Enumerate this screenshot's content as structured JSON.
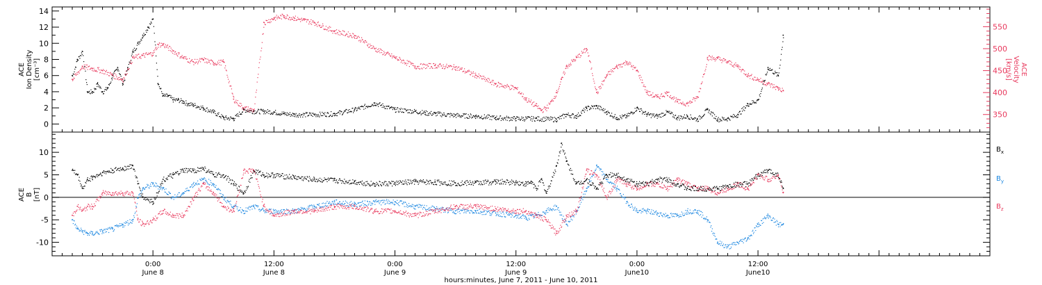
{
  "chart_data": [
    {
      "type": "scatter",
      "panel": "ace-density-velocity",
      "ylabel_lines": [
        "ACE",
        "Ion Density",
        "[cm⁻³]"
      ],
      "y2label_lines": [
        "ACE",
        "Velocity",
        "[km/s]"
      ],
      "ylim": [
        -1,
        14.5
      ],
      "yticks": [
        0,
        2,
        4,
        6,
        8,
        10,
        12,
        14
      ],
      "y2lim": [
        310,
        595
      ],
      "y2ticks": [
        350,
        400,
        450,
        500,
        550
      ],
      "series": [
        {
          "color": "#000000",
          "axis": "left",
          "x": [
            -8,
            -7.5,
            -7,
            -6.5,
            -6,
            -5.5,
            -5,
            -4.5,
            -4,
            -3.5,
            -3,
            -2.5,
            -2,
            -1.5,
            -1,
            -0.5,
            0,
            0.5,
            1,
            1.5,
            2,
            2.5,
            3,
            3.5,
            4,
            5,
            6,
            7,
            8,
            9,
            10,
            11,
            12,
            13,
            14,
            16,
            18,
            20,
            22,
            24,
            26,
            27,
            28,
            30,
            32,
            34,
            36,
            38,
            40,
            41,
            42,
            43,
            44,
            45,
            46,
            47,
            48,
            49,
            50,
            51,
            52,
            53,
            54,
            55,
            56,
            57,
            58,
            59,
            60,
            61,
            62,
            62.5
          ],
          "y": [
            6,
            8,
            9,
            4,
            4,
            5,
            4,
            4.5,
            6,
            7,
            5,
            7,
            9,
            10,
            11,
            12,
            13,
            5,
            3.5,
            3.5,
            3,
            3,
            2.8,
            2.5,
            2.4,
            2,
            1.5,
            0.8,
            0.7,
            1.8,
            1.6,
            1.6,
            1.5,
            1.3,
            1.2,
            1.2,
            1.3,
            1.8,
            2.6,
            1.8,
            1.6,
            1.4,
            1.3,
            1.1,
            1,
            0.8,
            0.7,
            0.7,
            0.6,
            1.2,
            1,
            2,
            2.2,
            1.5,
            0.8,
            1,
            2,
            1.2,
            1,
            1.5,
            0.8,
            1,
            0.6,
            1.8,
            0.6,
            0.7,
            1.2,
            2.5,
            3,
            7,
            6,
            11
          ]
        },
        {
          "color": "#e8385c",
          "axis": "right",
          "x": [
            -8,
            -7,
            -6,
            -5,
            -4,
            -3,
            -2,
            -1,
            0,
            0.5,
            1,
            2,
            3,
            4,
            5,
            6,
            7,
            8,
            9,
            10,
            11,
            12,
            13,
            14,
            15,
            16,
            18,
            20,
            22,
            24,
            26,
            28,
            30,
            32,
            34,
            36,
            37,
            38,
            38.5,
            39,
            39.5,
            40,
            40.5,
            41,
            42,
            43,
            44,
            45,
            46,
            47,
            48,
            49,
            50,
            51,
            52,
            53,
            54,
            55,
            56,
            57,
            58,
            59,
            60,
            61,
            62,
            62.5
          ],
          "y": [
            430,
            460,
            455,
            450,
            440,
            430,
            480,
            485,
            490,
            510,
            510,
            495,
            480,
            470,
            475,
            468,
            470,
            385,
            365,
            360,
            560,
            570,
            575,
            570,
            565,
            560,
            540,
            530,
            500,
            480,
            460,
            462,
            458,
            440,
            420,
            410,
            385,
            370,
            360,
            365,
            380,
            400,
            430,
            460,
            480,
            500,
            400,
            440,
            460,
            470,
            450,
            400,
            390,
            400,
            380,
            375,
            390,
            480,
            478,
            470,
            460,
            440,
            430,
            420,
            410,
            405
          ]
        }
      ],
      "baseline": 1.5
    },
    {
      "type": "scatter",
      "panel": "ace-magnetic-field",
      "ylabel_lines": [
        "ACE",
        "B",
        "[nT]"
      ],
      "ylim": [
        -13,
        14.5
      ],
      "yticks": [
        -10,
        -5,
        0,
        5,
        10
      ],
      "zero_line": true,
      "legend_position": "right",
      "series": [
        {
          "name_main": "B",
          "name_sub": "x",
          "color": "#000000",
          "x": [
            -8,
            -7.5,
            -7,
            -6.5,
            -6,
            -5,
            -4,
            -3,
            -2,
            -1.5,
            -1,
            0,
            1,
            2,
            3,
            4,
            5,
            6,
            7,
            8,
            9,
            10,
            11,
            12,
            14,
            16,
            18,
            20,
            22,
            24,
            26,
            28,
            30,
            32,
            34,
            36,
            37,
            37.5,
            38,
            38.5,
            39,
            40,
            40.5,
            41,
            42,
            43,
            44,
            45,
            46,
            47,
            48,
            49,
            50,
            51,
            52,
            53,
            54,
            55,
            56,
            57,
            58,
            59,
            60,
            61,
            62,
            62.5
          ],
          "y": [
            6,
            5,
            2,
            4,
            4.5,
            5.5,
            6,
            6.5,
            7,
            3,
            0,
            -1,
            4,
            5,
            6,
            6,
            6.5,
            5,
            5,
            3,
            1,
            6,
            5,
            5,
            4.5,
            4,
            3.8,
            3.5,
            3,
            3.2,
            3.5,
            3.4,
            3.2,
            3.3,
            3.5,
            3.4,
            3,
            3.5,
            2,
            4,
            1,
            7,
            12,
            8,
            3,
            4,
            2,
            5,
            5,
            4,
            3,
            3,
            4,
            4,
            3,
            2,
            2,
            2,
            2,
            2.5,
            3,
            3,
            5,
            6,
            5,
            2
          ]
        },
        {
          "name_main": "B",
          "name_sub": "y",
          "color": "#1a86e0",
          "x": [
            -8,
            -7.5,
            -7,
            -6.5,
            -6,
            -5,
            -4,
            -3,
            -2,
            -1.5,
            -1,
            0,
            1,
            2,
            3,
            4,
            5,
            6,
            7,
            8,
            9,
            10,
            11,
            12,
            14,
            16,
            18,
            20,
            22,
            24,
            26,
            28,
            30,
            32,
            34,
            36,
            37,
            38,
            39,
            40,
            41,
            42,
            43,
            44,
            45,
            46,
            47,
            48,
            49,
            50,
            51,
            52,
            53,
            54,
            55,
            56,
            57,
            58,
            59,
            60,
            61,
            62,
            62.5
          ],
          "y": [
            -5,
            -7,
            -7.5,
            -8,
            -8,
            -7.5,
            -7,
            -6,
            -5,
            0,
            2,
            3,
            2,
            0,
            1,
            3,
            4,
            3,
            0,
            -2,
            -3,
            -2,
            -3,
            -3,
            -3,
            -2,
            -1,
            -1.5,
            -1,
            -1,
            -2,
            -2.5,
            -3,
            -3,
            -3.5,
            -4,
            -4.5,
            -4,
            -3,
            -2,
            -6,
            -3,
            2,
            7,
            4,
            2,
            -1,
            -3,
            -3,
            -3.5,
            -4,
            -4,
            -3,
            -3,
            -5,
            -10,
            -11,
            -10,
            -9,
            -6,
            -4,
            -6,
            -6
          ]
        },
        {
          "name_main": "B",
          "name_sub": "z",
          "color": "#e8385c",
          "x": [
            -8,
            -7.5,
            -7,
            -6.5,
            -6,
            -5,
            -4,
            -3,
            -2,
            -1.5,
            -1,
            0,
            1,
            2,
            3,
            4,
            5,
            6,
            7,
            8,
            9,
            10,
            11,
            12,
            14,
            16,
            18,
            20,
            22,
            24,
            26,
            28,
            30,
            32,
            34,
            36,
            37,
            38,
            39,
            40,
            41,
            42,
            43,
            44,
            45,
            46,
            47,
            48,
            49,
            50,
            51,
            52,
            53,
            54,
            55,
            56,
            57,
            58,
            59,
            60,
            61,
            62,
            62.5
          ],
          "y": [
            -4,
            -2,
            -3,
            -2,
            -2,
            1,
            1,
            1,
            1,
            -5,
            -6,
            -5,
            -3,
            -4,
            -4,
            0,
            3,
            1,
            -2,
            -3,
            6,
            6,
            -2,
            -4,
            -3,
            -3,
            -2,
            -2,
            -3,
            -3,
            -4,
            -3,
            -2,
            -2,
            -2.5,
            -3,
            -3,
            -4,
            -5,
            -8,
            -4,
            -3,
            6,
            5,
            0,
            4,
            3,
            2,
            3,
            3,
            2,
            4,
            3,
            2,
            2,
            1,
            2,
            3,
            2,
            5,
            4,
            5,
            1
          ]
        }
      ]
    }
  ],
  "x_axis": {
    "range": [
      -10,
      83
    ],
    "major_ticks": [
      {
        "x": 0,
        "time": "0:00",
        "date": "June 8"
      },
      {
        "x": 12,
        "time": "12:00",
        "date": "June 8"
      },
      {
        "x": 24,
        "time": "0:00",
        "date": "June 9"
      },
      {
        "x": 36,
        "time": "12:00",
        "date": "June 9"
      },
      {
        "x": 48,
        "time": "0:00",
        "date": "June10"
      },
      {
        "x": 60,
        "time": "12:00",
        "date": "June10"
      }
    ],
    "title": "hours:minutes, June  7, 2011 - June 10, 2011"
  }
}
